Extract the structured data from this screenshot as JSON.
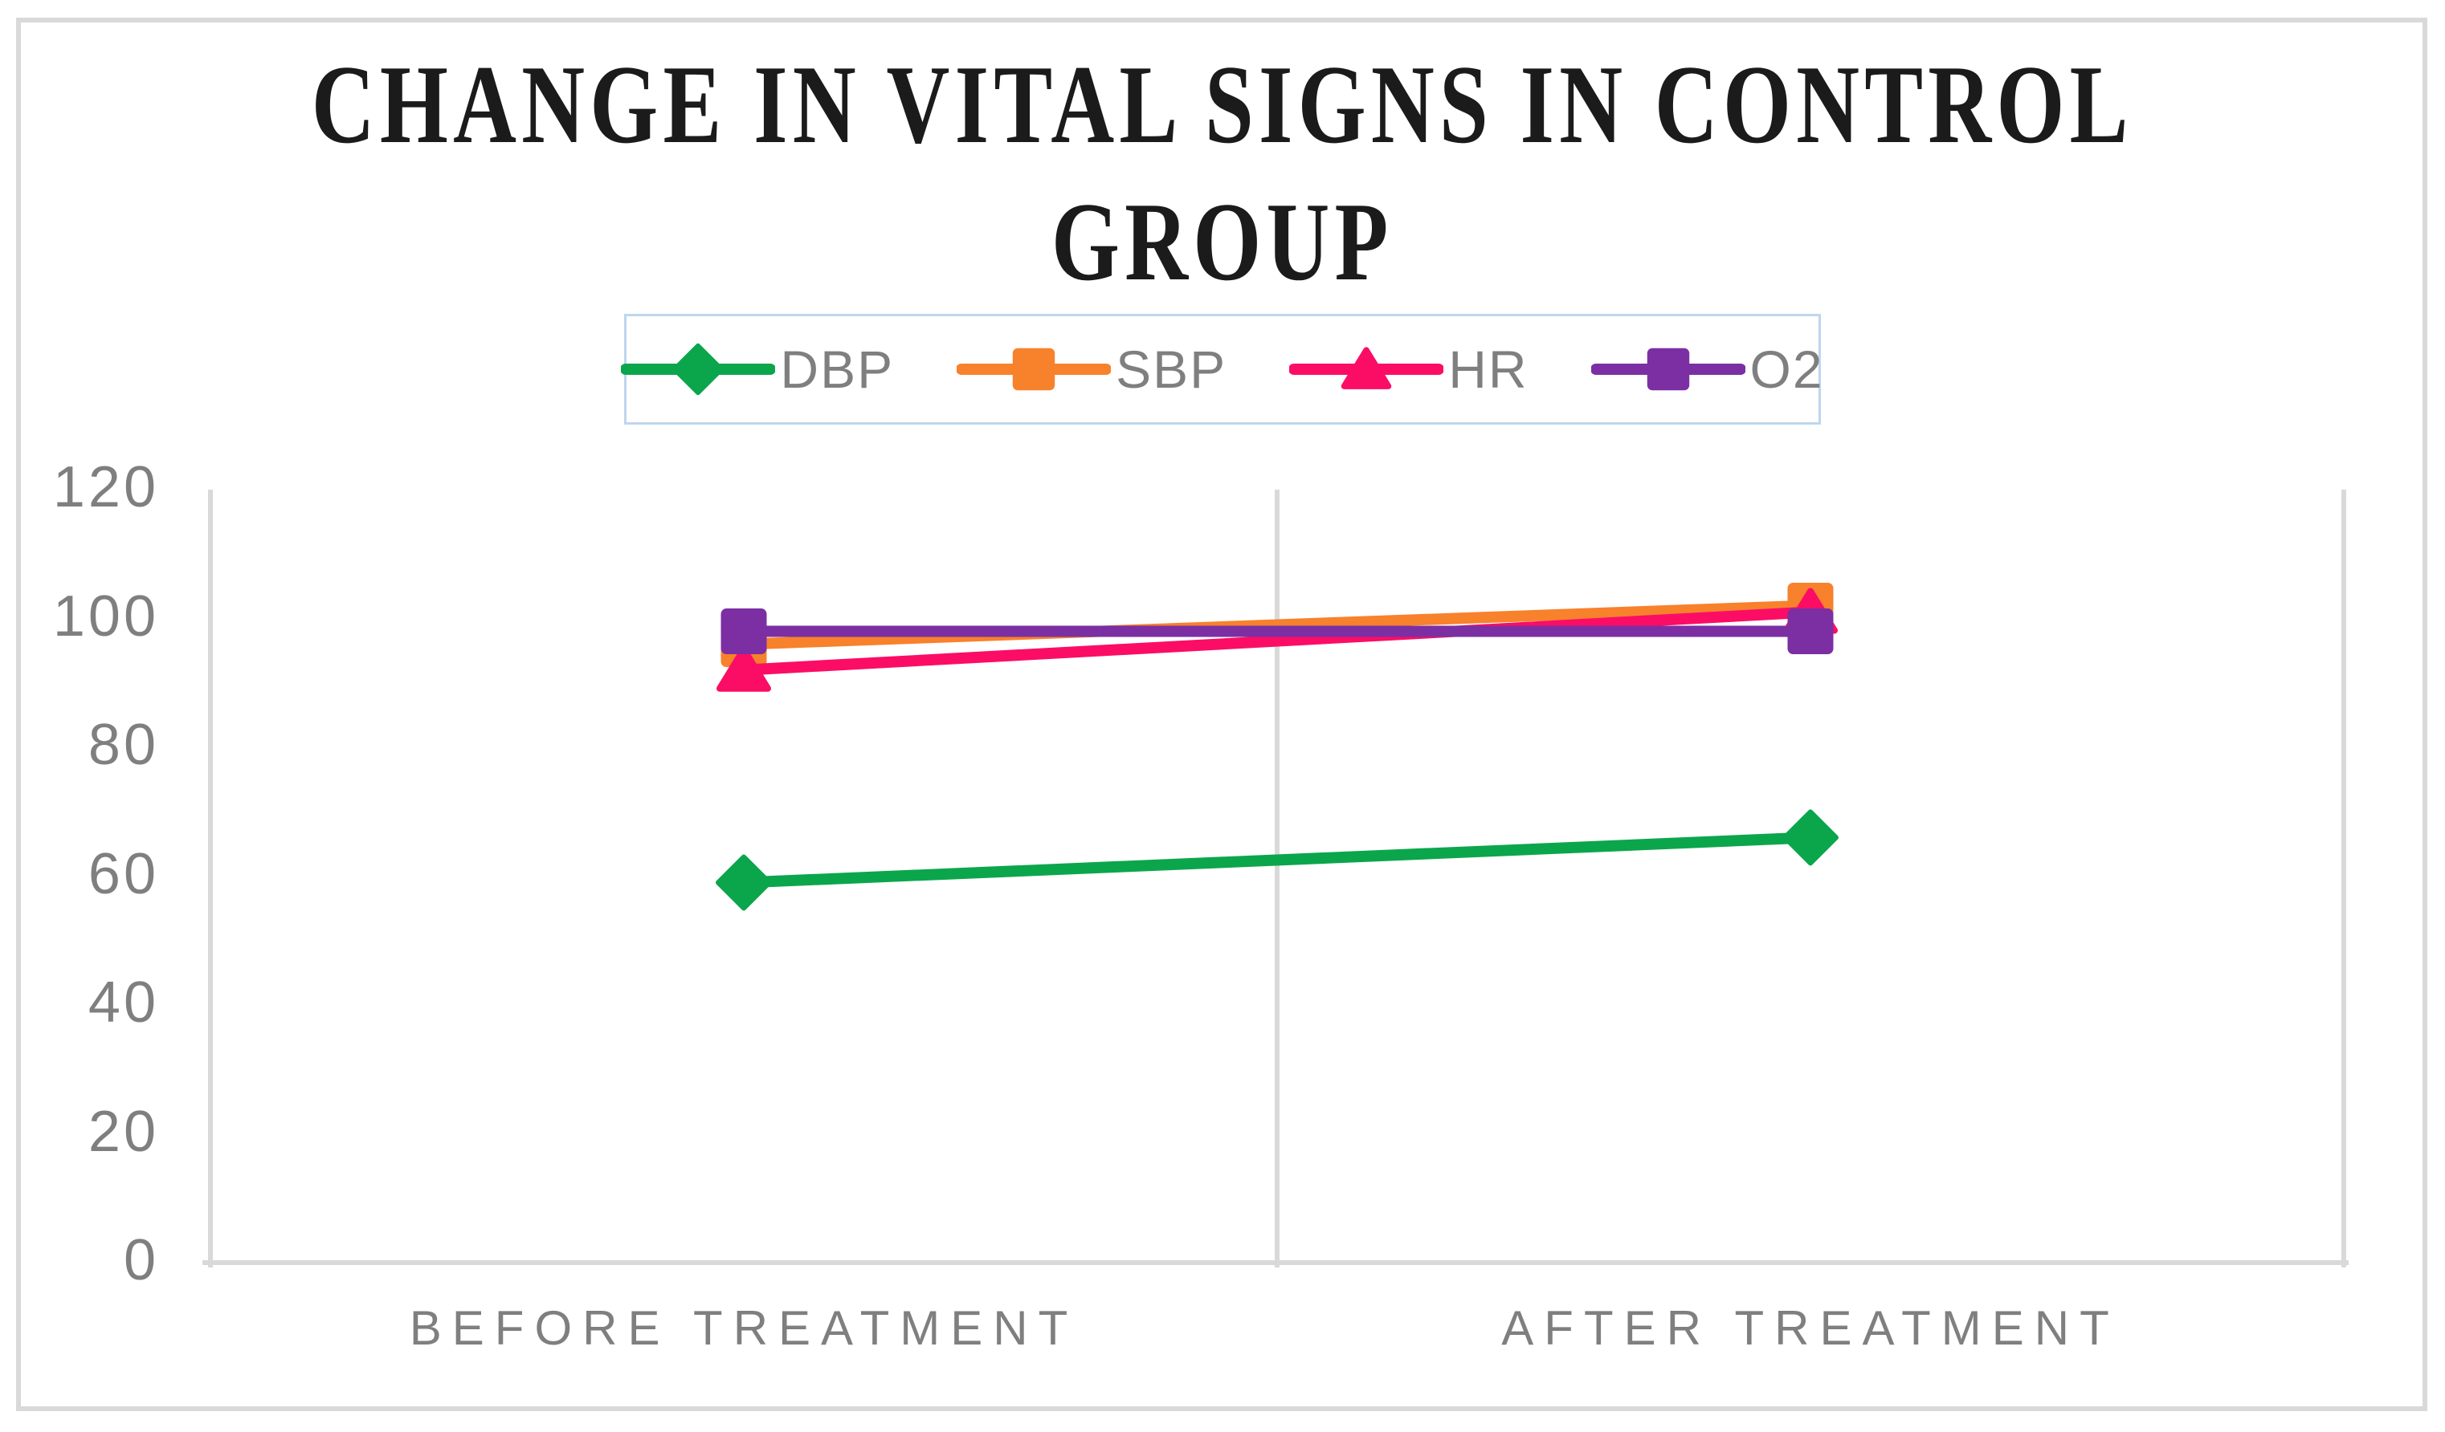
{
  "chart_data": {
    "type": "line",
    "title": "CHANGE IN VITAL SIGNS IN CONTROL GROUP",
    "title_lines": [
      "CHANGE IN VITAL SIGNS IN CONTROL",
      "GROUP"
    ],
    "categories": [
      "BEFORE TREATMENT",
      "AFTER TREATMENT"
    ],
    "series": [
      {
        "name": "DBP",
        "values": [
          59,
          66
        ],
        "color": "#0BA64B",
        "marker": "diamond"
      },
      {
        "name": "SBP",
        "values": [
          96,
          102
        ],
        "color": "#F8812C",
        "marker": "square"
      },
      {
        "name": "HR",
        "values": [
          92,
          101
        ],
        "color": "#FB0D66",
        "marker": "triangle"
      },
      {
        "name": "O2",
        "values": [
          98,
          98
        ],
        "color": "#7B2FA3",
        "marker": "square"
      }
    ],
    "ylim": [
      0,
      120
    ],
    "yticks": [
      0,
      20,
      40,
      60,
      80,
      100,
      120
    ],
    "legend_position": "top-center",
    "grid": "vertical category-boundary gridlines only; no horizontal gridlines"
  },
  "style": {
    "background": "#FFFFFF",
    "frame_border_color": "#D9D9D9",
    "axis_line_color": "#D9D9D9",
    "tick_label_color": "#7F7F7F",
    "legend_border_color": "#BDD7EE",
    "legend_text_color": "#7F7F7F",
    "title_color": "#1B1B1B"
  }
}
